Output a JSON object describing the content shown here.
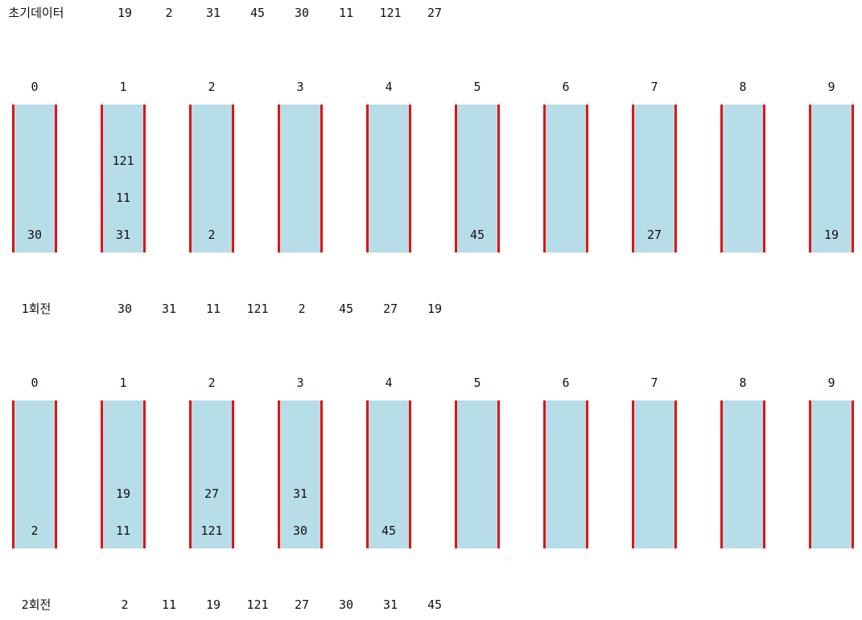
{
  "rows": [
    {
      "label": "초기데이터",
      "values": [
        "19",
        "2",
        "31",
        "45",
        "30",
        "11",
        "121",
        "27"
      ]
    },
    {
      "label": "1회전",
      "values": [
        "30",
        "31",
        "11",
        "121",
        "2",
        "45",
        "27",
        "19"
      ]
    },
    {
      "label": "2회전",
      "values": [
        "2",
        "11",
        "19",
        "121",
        "27",
        "30",
        "31",
        "45"
      ]
    }
  ],
  "passes": [
    {
      "indices": [
        "0",
        "1",
        "2",
        "3",
        "4",
        "5",
        "6",
        "7",
        "8",
        "9"
      ],
      "buckets": [
        [
          "30"
        ],
        [
          "31",
          "11",
          "121"
        ],
        [
          "2"
        ],
        [],
        [],
        [
          "45"
        ],
        [],
        [
          "27"
        ],
        [],
        [
          "19"
        ]
      ]
    },
    {
      "indices": [
        "0",
        "1",
        "2",
        "3",
        "4",
        "5",
        "6",
        "7",
        "8",
        "9"
      ],
      "buckets": [
        [
          "2"
        ],
        [
          "11",
          "19"
        ],
        [
          "121",
          "27"
        ],
        [
          "30",
          "31"
        ],
        [
          "45"
        ],
        [],
        [],
        [],
        [],
        []
      ]
    }
  ],
  "colors": {
    "bucket_fill": "#b7dde8",
    "bucket_wall": "#e01414"
  }
}
